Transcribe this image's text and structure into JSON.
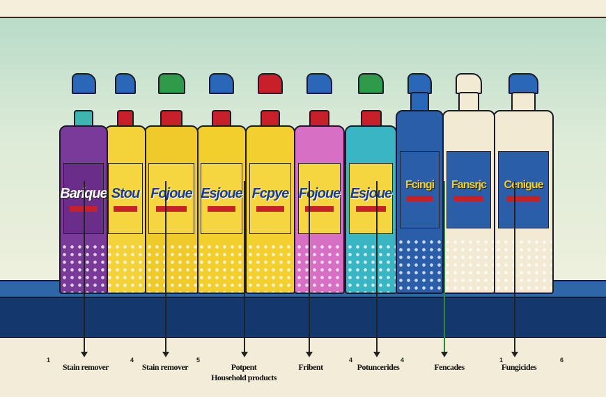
{
  "bottles": [
    {
      "brand": "Barique",
      "body": "#7a3a9a",
      "cap": "#3fb5b0",
      "trigger": "#2a67b8"
    },
    {
      "brand": "Stou",
      "body": "#f3d23a",
      "cap": "#c8202a",
      "trigger": "#2a67b8"
    },
    {
      "brand": "Fojoue",
      "body": "#f0c92a",
      "cap": "#c8202a",
      "trigger": "#2f9a4a"
    },
    {
      "brand": "Esjoue",
      "body": "#f3cf2e",
      "cap": "#c8202a",
      "trigger": "#2a67b8"
    },
    {
      "brand": "Fcpye",
      "body": "#f3d030",
      "cap": "#c8202a",
      "trigger": "#c8202a"
    },
    {
      "brand": "Fojoue",
      "body": "#d770c4",
      "cap": "#c8202a",
      "trigger": "#2a67b8"
    },
    {
      "brand": "Esjoue",
      "body": "#3ab5c4",
      "cap": "#c8202a",
      "trigger": "#2f9a4a"
    },
    {
      "brand": "Fcingi",
      "body": "#2a5ea8",
      "cap": "#2a67b8",
      "trigger": "#2a67b8"
    },
    {
      "brand": "Fansrjc",
      "body": "#f2ead2",
      "cap": "#f2ead2",
      "trigger": "#f2ead2"
    },
    {
      "brand": "Cenigue",
      "body": "#f2ead2",
      "cap": "#f2ead2",
      "trigger": "#2a67b8"
    }
  ],
  "numbers": [
    "1",
    "4",
    "5",
    "4",
    "4",
    "1",
    "6"
  ],
  "captions": [
    "Stain remover",
    "Stain remover",
    "Potpent",
    "Household products",
    "Fribent",
    "Potuncerides",
    "Fencades",
    "Fungicides"
  ]
}
